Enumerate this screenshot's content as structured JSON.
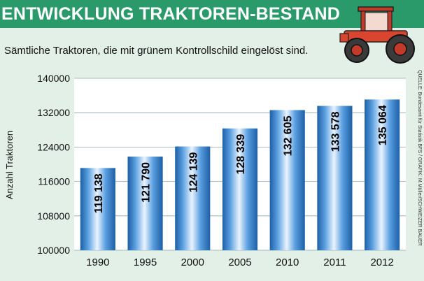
{
  "header": {
    "title": "ENTWICKLUNG TRAKTOREN-BESTAND",
    "subtitle": "Sämtliche Traktoren, die mit grünem Kontrollschild eingelöst sind."
  },
  "source": "QUELLE: Bundesamt für Statistik BFS / GRAFIK: M.Müller/SCHWEIZER BAUER",
  "illustration_icon": "tractor-icon",
  "colors": {
    "header_bg": "#2a9a6a",
    "panel_bg": "#e3f0e8",
    "bar": "#2f7fc6",
    "bar_highlight": "#eaf4ff"
  },
  "chart_data": {
    "type": "bar",
    "categories": [
      "1990",
      "1995",
      "2000",
      "2005",
      "2010",
      "2011",
      "2012"
    ],
    "values": [
      119138,
      121790,
      124139,
      128339,
      132605,
      133578,
      135064
    ],
    "value_labels": [
      "119 138",
      "121 790",
      "124 139",
      "128 339",
      "132 605",
      "133 578",
      "135 064"
    ],
    "ylabel": "Anzahl Traktoren",
    "ylim": [
      100000,
      140000
    ],
    "yticks": [
      100000,
      108000,
      116000,
      124000,
      132000,
      140000
    ],
    "ytick_labels": [
      "100000",
      "108000",
      "116000",
      "124000",
      "132000",
      "140000"
    ],
    "grid": true
  }
}
